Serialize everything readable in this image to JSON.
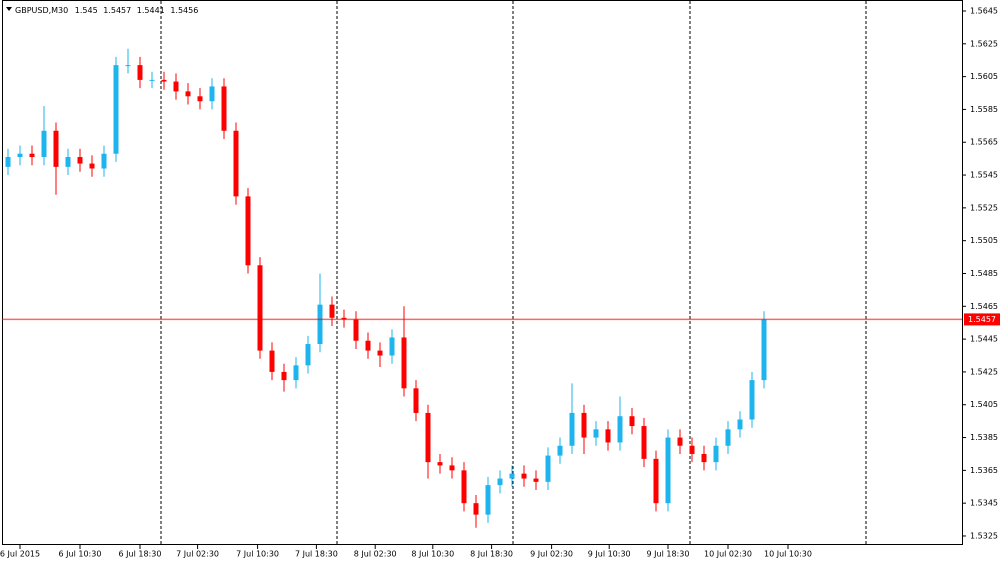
{
  "chart_data": {
    "type": "candlestick",
    "symbol": "GBPUSD,M30",
    "header_ohlc": [
      1.545,
      1.5457,
      1.5441,
      1.5456
    ],
    "current_price": 1.5457,
    "up_color": "#1eb4ee",
    "down_color": "#ff0000",
    "price_line_color": "#ff0000",
    "open": [
      1.555,
      1.5556,
      1.5558,
      1.5556,
      1.5572,
      1.555,
      1.5556,
      1.5552,
      1.5549,
      1.5558,
      1.5612,
      1.5612,
      1.5603,
      1.5603,
      1.5602,
      1.5596,
      1.5593,
      1.559,
      1.5599,
      1.5572,
      1.5532,
      1.549,
      1.5438,
      1.5425,
      1.542,
      1.5429,
      1.5442,
      1.5466,
      1.5458,
      1.5457,
      1.5444,
      1.5438,
      1.5435,
      1.5446,
      1.5415,
      1.54,
      1.537,
      1.5368,
      1.5365,
      1.5345,
      1.5338,
      1.5356,
      1.536,
      1.5363,
      1.536,
      1.5358,
      1.5374,
      1.538,
      1.54,
      1.5385,
      1.539,
      1.5382,
      1.5398,
      1.5392,
      1.5372,
      1.5345,
      1.5385,
      1.538,
      1.5375,
      1.537,
      1.538,
      1.539,
      1.5396,
      1.542
    ],
    "high": [
      1.5561,
      1.5563,
      1.5563,
      1.5587,
      1.5577,
      1.5561,
      1.5561,
      1.5557,
      1.5563,
      1.5617,
      1.5622,
      1.5617,
      1.5608,
      1.5608,
      1.5607,
      1.5601,
      1.5598,
      1.5604,
      1.5604,
      1.5577,
      1.5537,
      1.5495,
      1.5443,
      1.543,
      1.5434,
      1.5447,
      1.5485,
      1.5471,
      1.5463,
      1.5462,
      1.5449,
      1.5443,
      1.5451,
      1.5465,
      1.542,
      1.5405,
      1.5375,
      1.5373,
      1.537,
      1.535,
      1.5361,
      1.5365,
      1.5368,
      1.5368,
      1.5365,
      1.5379,
      1.5385,
      1.5418,
      1.5405,
      1.5395,
      1.5395,
      1.541,
      1.5403,
      1.5397,
      1.5377,
      1.539,
      1.539,
      1.5385,
      1.538,
      1.5385,
      1.5395,
      1.5401,
      1.5425,
      1.5462
    ],
    "low": [
      1.5545,
      1.5551,
      1.5551,
      1.5551,
      1.5533,
      1.5545,
      1.5547,
      1.5544,
      1.5544,
      1.5553,
      1.5607,
      1.5598,
      1.5598,
      1.5597,
      1.5591,
      1.5588,
      1.5585,
      1.5585,
      1.5567,
      1.5527,
      1.5485,
      1.5433,
      1.542,
      1.5413,
      1.5415,
      1.5424,
      1.5437,
      1.5453,
      1.5452,
      1.5439,
      1.5433,
      1.5428,
      1.543,
      1.541,
      1.5395,
      1.536,
      1.5363,
      1.536,
      1.534,
      1.533,
      1.5333,
      1.5351,
      1.5355,
      1.5355,
      1.5353,
      1.5353,
      1.5369,
      1.5375,
      1.5375,
      1.538,
      1.5377,
      1.5377,
      1.5387,
      1.5367,
      1.534,
      1.534,
      1.5375,
      1.537,
      1.5365,
      1.5365,
      1.5375,
      1.5385,
      1.5391,
      1.5415
    ],
    "close": [
      1.5556,
      1.5558,
      1.5556,
      1.5572,
      1.555,
      1.5556,
      1.5552,
      1.5549,
      1.5558,
      1.5612,
      1.5612,
      1.5603,
      1.5603,
      1.5602,
      1.5596,
      1.5593,
      1.559,
      1.5599,
      1.5572,
      1.5532,
      1.549,
      1.5438,
      1.5425,
      1.542,
      1.5429,
      1.5442,
      1.5466,
      1.5458,
      1.5457,
      1.5444,
      1.5438,
      1.5435,
      1.5446,
      1.5415,
      1.54,
      1.537,
      1.5368,
      1.5365,
      1.5345,
      1.5338,
      1.5356,
      1.536,
      1.5363,
      1.536,
      1.5358,
      1.5374,
      1.538,
      1.54,
      1.5385,
      1.539,
      1.5382,
      1.5398,
      1.5392,
      1.5372,
      1.5345,
      1.5385,
      1.538,
      1.5375,
      1.537,
      1.538,
      1.539,
      1.5396,
      1.542,
      1.5457
    ],
    "xlim": [
      -0.5,
      79.5
    ],
    "xticks": [
      {
        "value": 1,
        "label": "6 Jul 2015"
      },
      {
        "value": 6,
        "label": "6 Jul 10:30"
      },
      {
        "value": 11,
        "label": "6 Jul 18:30"
      },
      {
        "value": 15.8,
        "label": "7 Jul 02:30"
      },
      {
        "value": 20.8,
        "label": "7 Jul 10:30"
      },
      {
        "value": 25.7,
        "label": "7 Jul 18:30"
      },
      {
        "value": 30.6,
        "label": "8 Jul 02:30"
      },
      {
        "value": 35.4,
        "label": "8 Jul 10:30"
      },
      {
        "value": 40.3,
        "label": "8 Jul 18:30"
      },
      {
        "value": 45.3,
        "label": "9 Jul 02:30"
      },
      {
        "value": 50.1,
        "label": "9 Jul 10:30"
      },
      {
        "value": 55,
        "label": "9 Jul 18:30"
      },
      {
        "value": 60,
        "label": "10 Jul 02:30"
      },
      {
        "value": 65,
        "label": "10 Jul 10:30"
      }
    ],
    "ylim": [
      1.53195,
      1.56517
    ],
    "yticks": [
      1.5325,
      1.5345,
      1.5365,
      1.5385,
      1.5405,
      1.5425,
      1.5445,
      1.5465,
      1.5485,
      1.5505,
      1.5525,
      1.5545,
      1.5565,
      1.5585,
      1.5605,
      1.5625,
      1.5645
    ]
  }
}
